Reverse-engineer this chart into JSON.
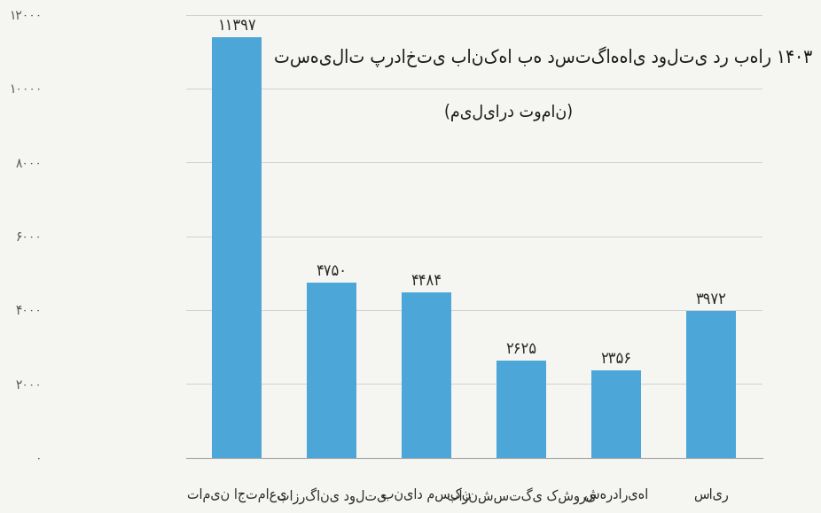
{
  "categories": [
    "تامین اجتماعی",
    "بازرگانی دولتی",
    "بنیاد مسکن",
    "بازنشستگی کشوری",
    "شهرداری‌ها",
    "سایر"
  ],
  "values": [
    11397,
    4750,
    4484,
    2625,
    2356,
    3972
  ],
  "bar_color": "#4da6d8",
  "title_line1": "تسهیلات پرداختی بانک‌ها به دستگاه‌های دولتی در بهار ۱۴۰۳",
  "title_line2": "(میلیارد تومان)",
  "ylim": [
    0,
    12000
  ],
  "yticks": [
    0,
    2000,
    4000,
    6000,
    8000,
    10000,
    12000
  ],
  "ytick_labels": [
    "۰",
    "۲۰۰۰",
    "۴۰۰۰",
    "۶۰۰۰",
    "۸۰۰۰",
    "۱۰۰۰۰",
    "۱۲۰۰۰"
  ],
  "value_labels": [
    "۱۱۳۹۷",
    "۴۷۵۰",
    "۴۴۸۴",
    "۲۶۲۵",
    "۲۳۵۶",
    "۳۹۷۲"
  ],
  "background_color": "#f5f5f2",
  "grid_color": "#d0d0d0",
  "bar_width": 0.52,
  "title_fontsize": 15,
  "label_fontsize": 11.5,
  "value_fontsize": 13,
  "ytick_fontsize": 11
}
